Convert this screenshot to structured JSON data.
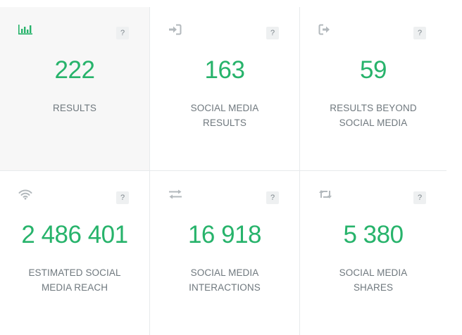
{
  "help_label": "?",
  "accent_color": "#27b36b",
  "cards": [
    {
      "icon": "bar-chart-icon",
      "value": "222",
      "label_line1": "RESULTS",
      "label_line2": ""
    },
    {
      "icon": "sign-in-icon",
      "value": "163",
      "label_line1": "SOCIAL MEDIA",
      "label_line2": "RESULTS"
    },
    {
      "icon": "sign-out-icon",
      "value": "59",
      "label_line1": "RESULTS BEYOND",
      "label_line2": "SOCIAL MEDIA"
    },
    {
      "icon": "wifi-icon",
      "value": "2 486 401",
      "label_line1": "ESTIMATED SOCIAL",
      "label_line2": "MEDIA REACH"
    },
    {
      "icon": "exchange-icon",
      "value": "16 918",
      "label_line1": "SOCIAL MEDIA",
      "label_line2": "INTERACTIONS"
    },
    {
      "icon": "retweet-icon",
      "value": "5 380",
      "label_line1": "SOCIAL MEDIA",
      "label_line2": "SHARES"
    }
  ]
}
